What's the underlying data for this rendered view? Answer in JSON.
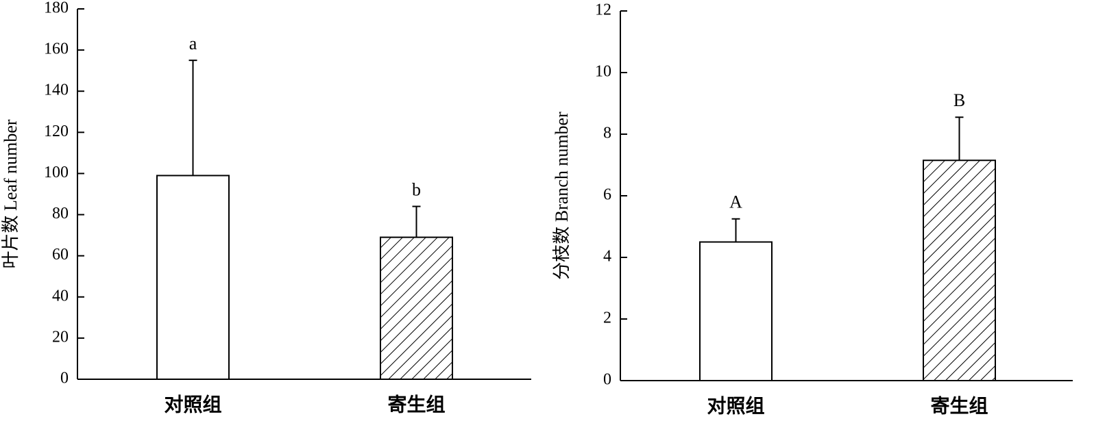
{
  "chart_data": [
    {
      "type": "bar",
      "ylabel": "叶片数 Leaf number",
      "categories": [
        "对照组",
        "寄生组"
      ],
      "values": [
        99,
        69
      ],
      "errors": [
        56,
        15
      ],
      "annotations": [
        "a",
        "b"
      ],
      "fills": [
        "white",
        "hatch"
      ],
      "ylim": [
        0,
        180
      ],
      "yticks": [
        0,
        20,
        40,
        60,
        80,
        100,
        120,
        140,
        160,
        180
      ]
    },
    {
      "type": "bar",
      "ylabel": "分枝数 Branch number",
      "categories": [
        "对照组",
        "寄生组"
      ],
      "values": [
        4.5,
        7.15
      ],
      "errors": [
        0.75,
        1.4
      ],
      "annotations": [
        "A",
        "B"
      ],
      "fills": [
        "white",
        "hatch"
      ],
      "ylim": [
        0,
        12
      ],
      "yticks": [
        0,
        2,
        4,
        6,
        8,
        10,
        12
      ]
    }
  ]
}
